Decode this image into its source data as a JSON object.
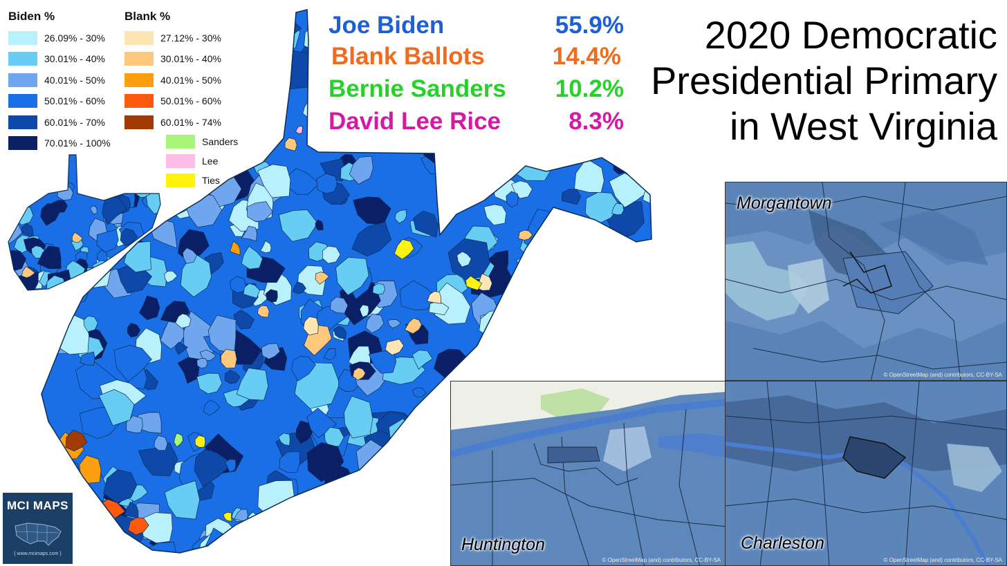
{
  "legend": {
    "biden_header": "Biden  %",
    "blank_header": "Blank  %",
    "biden_bins": [
      {
        "label": "26.09% - 30%",
        "color": "#b8f1fc"
      },
      {
        "label": "30.01% - 40%",
        "color": "#67cdf3"
      },
      {
        "label": "40.01% - 50%",
        "color": "#6fa6ee"
      },
      {
        "label": "50.01% - 60%",
        "color": "#1a6fe6"
      },
      {
        "label": "60.01% - 70%",
        "color": "#0e48a8"
      },
      {
        "label": "70.01% - 100%",
        "color": "#0a1f66"
      }
    ],
    "blank_bins": [
      {
        "label": "27.12% - 30%",
        "color": "#fde6b4"
      },
      {
        "label": "30.01% - 40%",
        "color": "#fdc77c"
      },
      {
        "label": "40.01% - 50%",
        "color": "#fd9f0f"
      },
      {
        "label": "50.01% - 60%",
        "color": "#fd5a10"
      },
      {
        "label": "60.01% - 74%",
        "color": "#a23a06"
      }
    ],
    "other": [
      {
        "label": "Sanders",
        "color": "#a8f57c"
      },
      {
        "label": "Lee",
        "color": "#fdbde6"
      },
      {
        "label": "Ties",
        "color": "#fdf30c"
      }
    ]
  },
  "results": [
    {
      "name": "Joe Biden",
      "value": "55.9%",
      "color": "#1e5fd6"
    },
    {
      "name": "Blank Ballots",
      "value": "14.4%",
      "color": "#f26a1b"
    },
    {
      "name": "Bernie Sanders",
      "value": "10.2%",
      "color": "#27d12a"
    },
    {
      "name": "David Lee Rice",
      "value": "8.3%",
      "color": "#d41aa3"
    }
  ],
  "title": {
    "line1": "2020 Democratic",
    "line2": "Presidential Primary",
    "line3": "in West Virginia"
  },
  "insets": {
    "morgantown": "Morgantown",
    "huntington": "Huntington",
    "charleston": "Charleston",
    "credit": "© OpenStreetMap (and) contributors, CC-BY-SA"
  },
  "logo": {
    "text": "MCI MAPS",
    "url": "{ www.mcimaps.com }"
  }
}
